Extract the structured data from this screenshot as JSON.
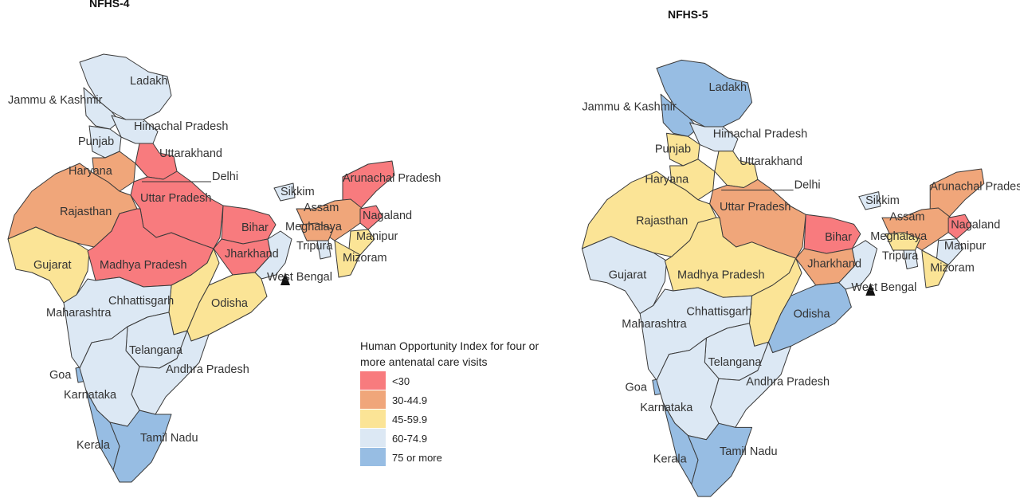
{
  "titles": {
    "left": "NFHS-4",
    "right": "NFHS-5"
  },
  "legend": {
    "title": "Human Opportunity Index for four or more antenatal care visits",
    "items": [
      {
        "key": "lt30",
        "label": "<30",
        "color": "#f87b7e"
      },
      {
        "key": "c30",
        "label": "30-44.9",
        "color": "#f0a67a"
      },
      {
        "key": "c45",
        "label": "45-59.9",
        "color": "#fbe496"
      },
      {
        "key": "c60",
        "label": "60-74.9",
        "color": "#dce8f4"
      },
      {
        "key": "c75",
        "label": "75 or more",
        "color": "#97bde3"
      }
    ]
  },
  "nfhs4": {
    "ladakh": {
      "name": "Ladakh",
      "category": "60-74.9"
    },
    "jk": {
      "name": "Jammu & Kashmir",
      "category": "60-74.9"
    },
    "hp": {
      "name": "Himachal Pradesh",
      "category": "60-74.9"
    },
    "punjab": {
      "name": "Punjab",
      "category": "60-74.9"
    },
    "uttarakhand": {
      "name": "Uttarakhand",
      "category": "<30"
    },
    "haryana": {
      "name": "Haryana",
      "category": "30-44.9"
    },
    "delhi": {
      "name": "Delhi",
      "category": ""
    },
    "up": {
      "name": "Uttar Pradesh",
      "category": "<30"
    },
    "rajasthan": {
      "name": "Rajasthan",
      "category": "30-44.9"
    },
    "bihar": {
      "name": "Bihar",
      "category": "<30"
    },
    "sikkim": {
      "name": "Sikkim",
      "category": "60-74.9"
    },
    "arunachal": {
      "name": "Arunachal Pradesh",
      "category": "<30"
    },
    "assam": {
      "name": "Assam",
      "category": "30-44.9"
    },
    "nagaland": {
      "name": "Nagaland",
      "category": "<30"
    },
    "meghalaya": {
      "name": "Meghalaya",
      "category": "30-44.9"
    },
    "manipur": {
      "name": "Manipur",
      "category": "45-59.9"
    },
    "tripura": {
      "name": "Tripura",
      "category": "60-74.9"
    },
    "mizoram": {
      "name": "Mizoram",
      "category": "45-59.9"
    },
    "gujarat": {
      "name": "Gujarat",
      "category": "45-59.9"
    },
    "mp": {
      "name": "Madhya Pradesh",
      "category": "<30"
    },
    "jharkhand": {
      "name": "Jharkhand",
      "category": "<30"
    },
    "wb": {
      "name": "West Bengal",
      "category": "60-74.9"
    },
    "chhattisgarh": {
      "name": "Chhattisgarh",
      "category": "45-59.9"
    },
    "odisha": {
      "name": "Odisha",
      "category": "45-59.9"
    },
    "maharashtra": {
      "name": "Maharashtra",
      "category": "60-74.9"
    },
    "telangana": {
      "name": "Telangana",
      "category": "60-74.9"
    },
    "ap": {
      "name": "Andhra Pradesh",
      "category": "60-74.9"
    },
    "goa": {
      "name": "Goa",
      "category": "75 or more"
    },
    "karnataka": {
      "name": "Karnataka",
      "category": "60-74.9"
    },
    "kerala": {
      "name": "Kerala",
      "category": "75 or more"
    },
    "tn": {
      "name": "Tamil Nadu",
      "category": "75 or more"
    }
  },
  "nfhs5": {
    "ladakh": {
      "name": "Ladakh",
      "category": "75 or more"
    },
    "jk": {
      "name": "Jammu & Kashmir",
      "category": "75 or more"
    },
    "hp": {
      "name": "Himachal Pradesh",
      "category": "60-74.9"
    },
    "punjab": {
      "name": "Punjab",
      "category": "45-59.9"
    },
    "uttarakhand": {
      "name": "Uttarakhand",
      "category": "45-59.9"
    },
    "haryana": {
      "name": "Haryana",
      "category": "45-59.9"
    },
    "delhi": {
      "name": "Delhi",
      "category": ""
    },
    "up": {
      "name": "Uttar Pradesh",
      "category": "30-44.9"
    },
    "rajasthan": {
      "name": "Rajasthan",
      "category": "45-59.9"
    },
    "bihar": {
      "name": "Bihar",
      "category": "<30"
    },
    "sikkim": {
      "name": "Sikkim",
      "category": "60-74.9"
    },
    "arunachal": {
      "name": "Arunachal Pradesh",
      "category": "30-44.9"
    },
    "assam": {
      "name": "Assam",
      "category": "30-44.9"
    },
    "nagaland": {
      "name": "Nagaland",
      "category": "<30"
    },
    "meghalaya": {
      "name": "Meghalaya",
      "category": "45-59.9"
    },
    "manipur": {
      "name": "Manipur",
      "category": "60-74.9"
    },
    "tripura": {
      "name": "Tripura",
      "category": "60-74.9"
    },
    "mizoram": {
      "name": "Mizoram",
      "category": "45-59.9"
    },
    "gujarat": {
      "name": "Gujarat",
      "category": "60-74.9"
    },
    "mp": {
      "name": "Madhya Pradesh",
      "category": "45-59.9"
    },
    "jharkhand": {
      "name": "Jharkhand",
      "category": "30-44.9"
    },
    "wb": {
      "name": "West Bengal",
      "category": "60-74.9"
    },
    "chhattisgarh": {
      "name": "Chhattisgarh",
      "category": "45-59.9"
    },
    "odisha": {
      "name": "Odisha",
      "category": "75 or more"
    },
    "maharashtra": {
      "name": "Maharashtra",
      "category": "60-74.9"
    },
    "telangana": {
      "name": "Telangana",
      "category": "60-74.9"
    },
    "ap": {
      "name": "Andhra Pradesh",
      "category": "60-74.9"
    },
    "goa": {
      "name": "Goa",
      "category": "75 or more"
    },
    "karnataka": {
      "name": "Karnataka",
      "category": "60-74.9"
    },
    "kerala": {
      "name": "Kerala",
      "category": "75 or more"
    },
    "tn": {
      "name": "Tamil Nadu",
      "category": "75 or more"
    }
  }
}
